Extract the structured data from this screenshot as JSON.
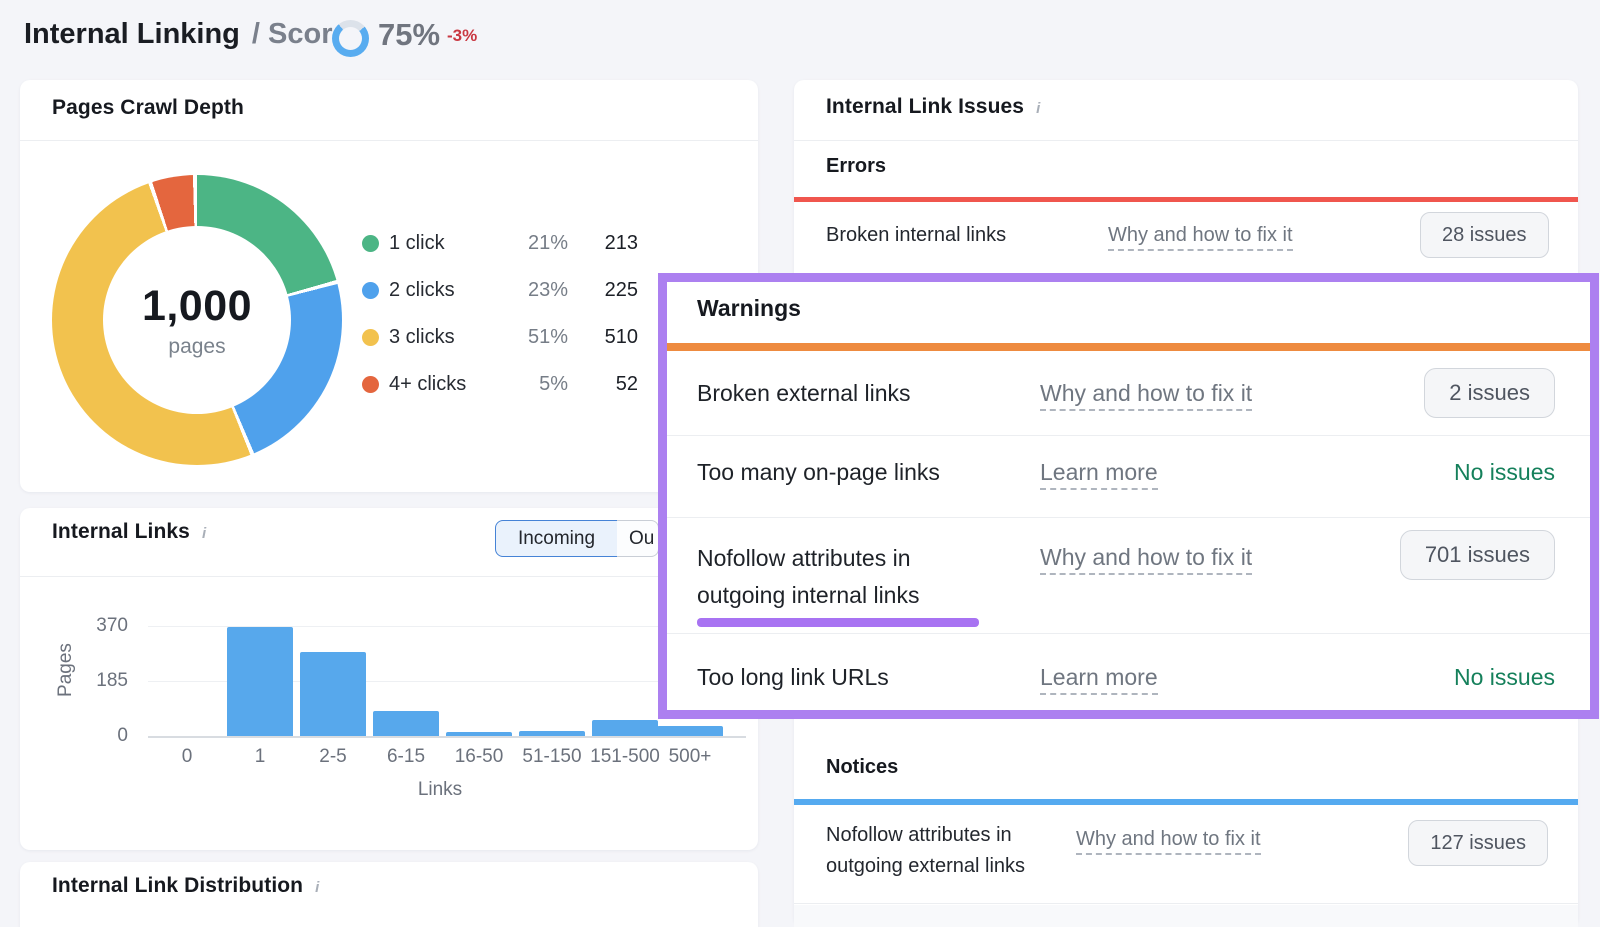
{
  "icons": {
    "info_glyph": "i"
  },
  "header": {
    "title": "Internal Linking",
    "score_label": "/ Score:",
    "score_value": "75%",
    "score_delta": "-3%",
    "score_pct": 75,
    "score_ring_color": "#58ACF0",
    "score_ring_track": "#DCE2EA"
  },
  "cards": {
    "crawl_depth": {
      "title": "Pages Crawl Depth"
    },
    "internal_links": {
      "title": "Internal Links",
      "toggle": {
        "selected": "Incoming",
        "other_partial": "Ou"
      }
    },
    "distribution": {
      "title": "Internal Link Distribution"
    }
  },
  "issues": {
    "title": "Internal Link Issues",
    "errors": {
      "heading": "Errors",
      "accent": "#F0564E",
      "rows": [
        {
          "label": "Broken internal links",
          "link": "Why and how to fix it",
          "value": "28 issues",
          "value_type": "button"
        }
      ]
    },
    "warnings": {
      "heading": "Warnings",
      "accent": "#EE8B40",
      "highlight_color": "#AC80F0",
      "underline_color": "#A873F2",
      "rows": [
        {
          "label": "Broken external links",
          "link": "Why and how to fix it",
          "value": "2 issues",
          "value_type": "button"
        },
        {
          "label": "Too many on-page links",
          "link": "Learn more",
          "value": "No issues",
          "value_type": "text"
        },
        {
          "label": "Nofollow attributes in outgoing internal links",
          "link": "Why and how to fix it",
          "value": "701 issues",
          "value_type": "button"
        },
        {
          "label": "Too long link URLs",
          "link": "Learn more",
          "value": "No issues",
          "value_type": "text"
        }
      ]
    },
    "notices": {
      "heading": "Notices",
      "accent": "#55AAF0",
      "rows": [
        {
          "label": "Nofollow attributes in outgoing external links",
          "link": "Why and how to fix it",
          "value": "127 issues",
          "value_type": "button"
        }
      ]
    }
  },
  "chart_data": [
    {
      "type": "pie",
      "title": "Pages Crawl Depth",
      "center_value": "1,000",
      "center_label": "pages",
      "labels": [
        "1 click",
        "2 clicks",
        "3 clicks",
        "4+ clicks"
      ],
      "values": [
        213,
        225,
        510,
        52
      ],
      "percent_labels": [
        "21%",
        "23%",
        "51%",
        "5%"
      ],
      "percentages": [
        21,
        23,
        51,
        5
      ],
      "colors": [
        "#4CB585",
        "#4FA1EC",
        "#F2C24E",
        "#E4663E"
      ],
      "legend_position": "right"
    },
    {
      "type": "bar",
      "title": "Internal Links",
      "series_label": "Incoming",
      "categories": [
        "0",
        "1",
        "2-5",
        "6-15",
        "16-50",
        "51-150",
        "151-500",
        "500+"
      ],
      "values": [
        0,
        367,
        283,
        84,
        15,
        18,
        54,
        32
      ],
      "xlabel": "Links",
      "ylabel": "Pages",
      "yticks": [
        0,
        185,
        370
      ],
      "ylim": [
        0,
        415
      ],
      "bar_color": "#57A8EC",
      "grid": true
    }
  ]
}
